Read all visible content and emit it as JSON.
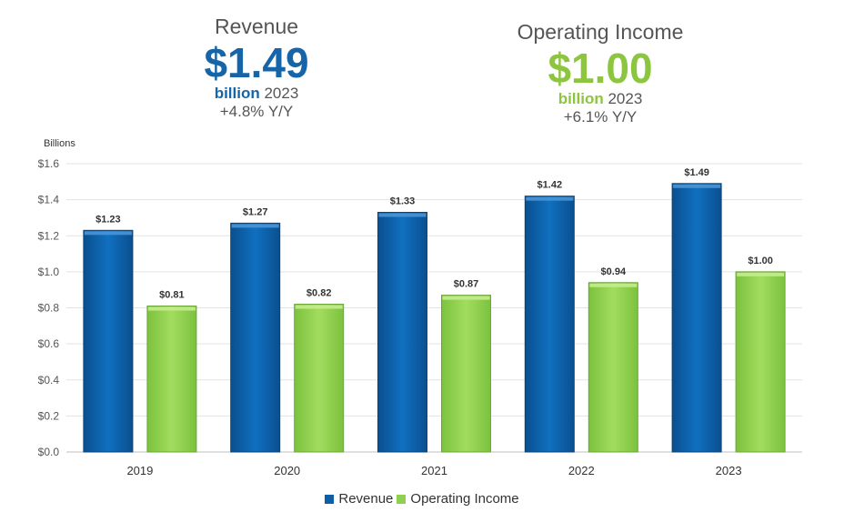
{
  "kpis": {
    "revenue": {
      "title": "Revenue",
      "value": "$1.49",
      "unit": "billion",
      "year": "2023",
      "change": "+4.8% Y/Y",
      "color": "#1565a8"
    },
    "operating_income": {
      "title": "Operating Income",
      "value": "$1.00",
      "unit": "billion",
      "year": "2023",
      "change": "+6.1% Y/Y",
      "color": "#8cc63f"
    }
  },
  "chart_data": {
    "type": "bar",
    "title": "",
    "ylabel": "Billions",
    "xlabel": "",
    "ylim": [
      0,
      1.6
    ],
    "yticks": [
      0,
      0.2,
      0.4,
      0.6,
      0.8,
      1.0,
      1.2,
      1.4,
      1.6
    ],
    "ytick_labels": [
      "$0.0",
      "$0.2",
      "$0.4",
      "$0.6",
      "$0.8",
      "$1.0",
      "$1.2",
      "$1.4",
      "$1.6"
    ],
    "categories": [
      "2019",
      "2020",
      "2021",
      "2022",
      "2023"
    ],
    "grid": true,
    "legend_position": "bottom-center",
    "series": [
      {
        "name": "Revenue",
        "color": "#0b5ea8",
        "values": [
          1.23,
          1.27,
          1.33,
          1.42,
          1.49
        ],
        "labels": [
          "$1.23",
          "$1.27",
          "$1.33",
          "$1.42",
          "$1.49"
        ]
      },
      {
        "name": "Operating Income",
        "color": "#8fd14f",
        "values": [
          0.81,
          0.82,
          0.87,
          0.94,
          1.0
        ],
        "labels": [
          "$0.81",
          "$0.82",
          "$0.87",
          "$0.94",
          "$1.00"
        ]
      }
    ]
  }
}
